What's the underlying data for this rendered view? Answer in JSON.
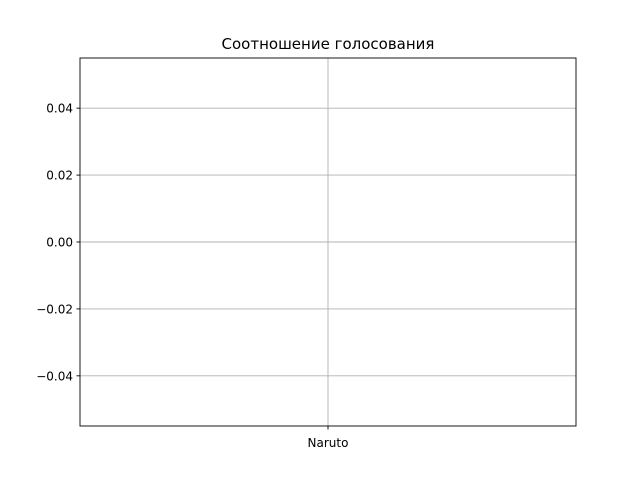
{
  "chart_data": {
    "type": "bar",
    "title": "Соотношение голосования",
    "xlabel": "",
    "ylabel": "",
    "categories": [
      "Naruto"
    ],
    "values": [
      0
    ],
    "ylim": [
      -0.055,
      0.055
    ],
    "yticks": [
      0.04,
      0.02,
      0.0,
      -0.02,
      -0.04
    ],
    "ytick_labels": [
      "0.04",
      "0.02",
      "0.00",
      "−0.02",
      "−0.04"
    ],
    "grid": true,
    "legend": "none"
  }
}
